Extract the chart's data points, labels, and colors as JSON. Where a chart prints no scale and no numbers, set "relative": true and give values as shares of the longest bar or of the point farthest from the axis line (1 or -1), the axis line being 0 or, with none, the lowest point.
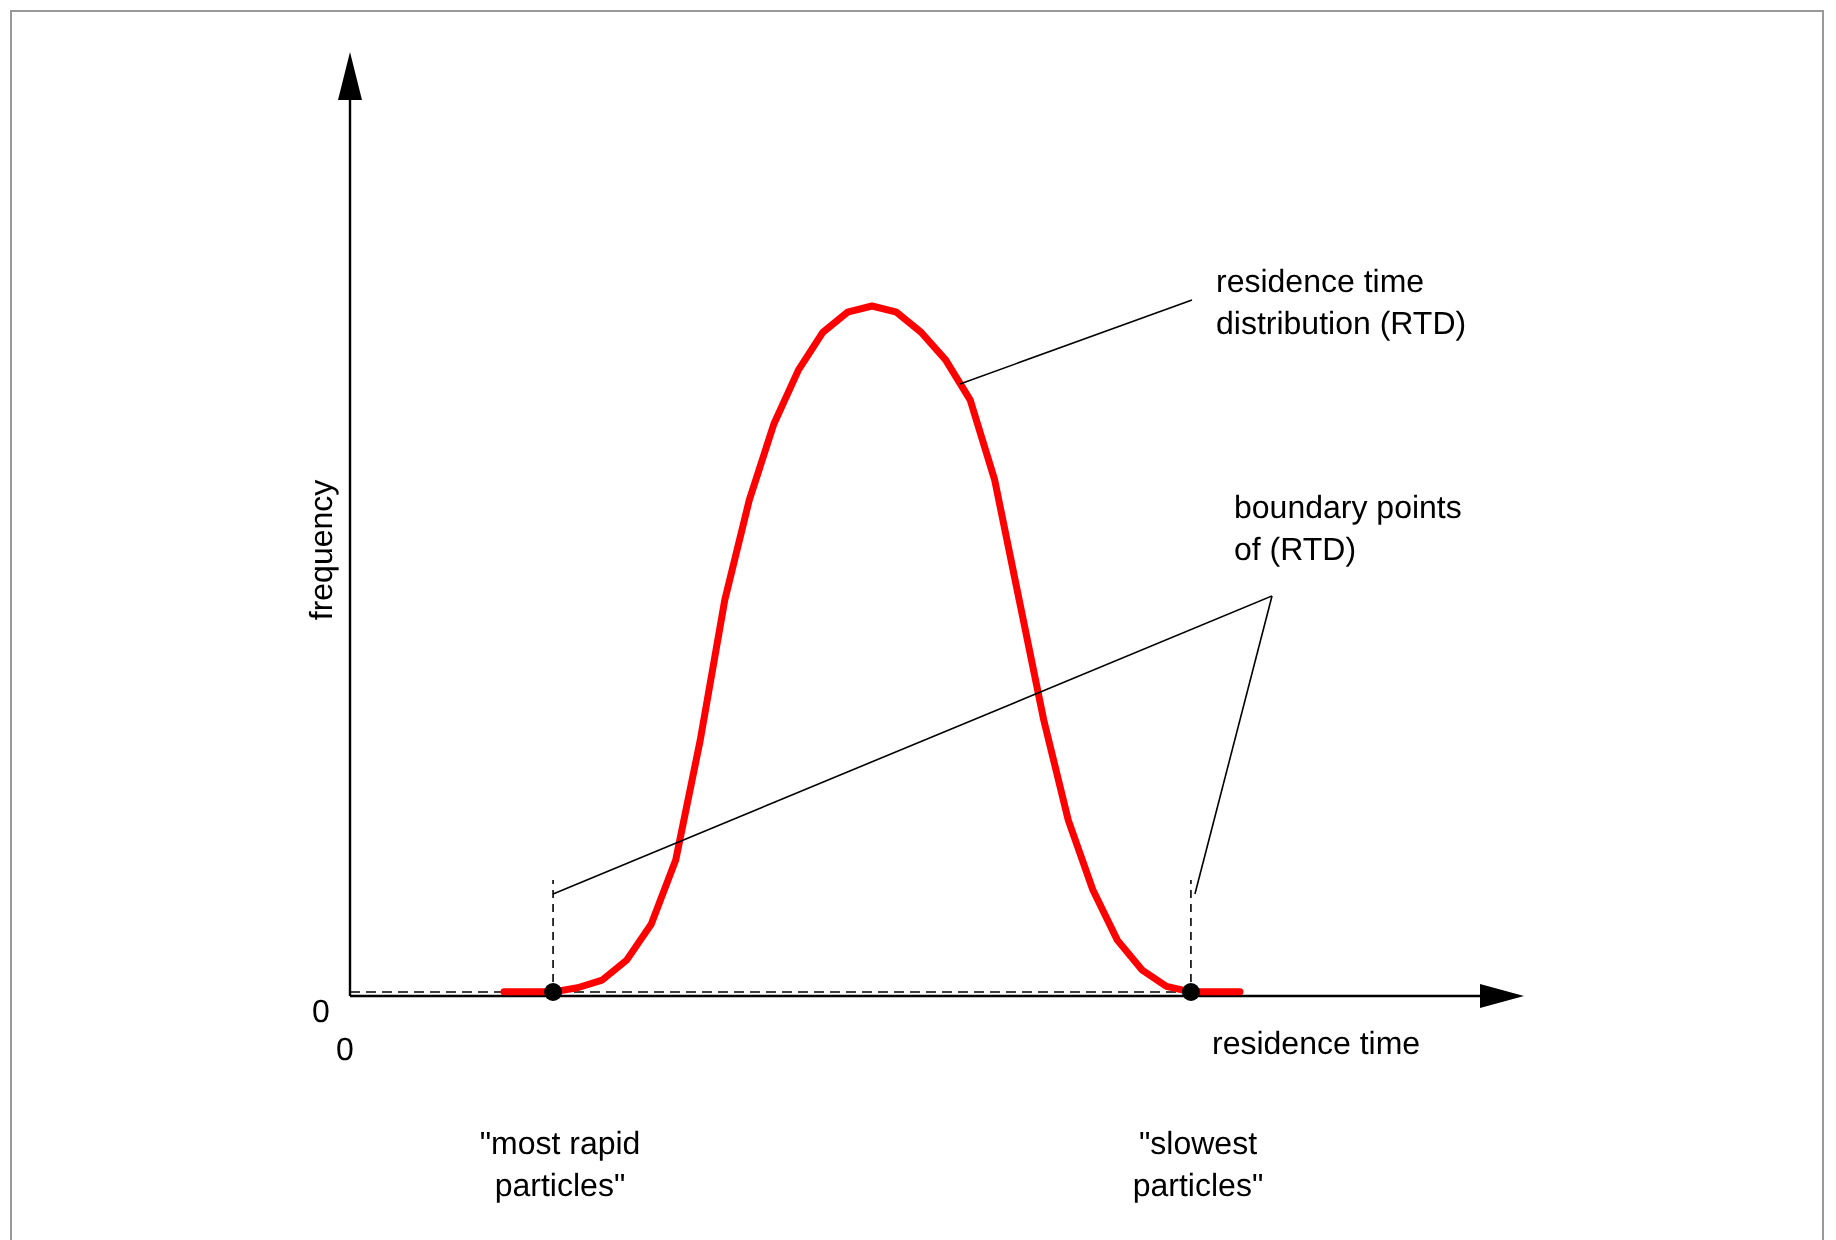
{
  "chart_data": {
    "type": "line",
    "relative": true,
    "xlabel": "residence time",
    "ylabel": "frequency",
    "categories": [
      null,
      null,
      null,
      null,
      null,
      null,
      null,
      null,
      null,
      null,
      null,
      null,
      null,
      null,
      null,
      null,
      null,
      null,
      null,
      null,
      null,
      null,
      null,
      null,
      null,
      null,
      null,
      null,
      null,
      null,
      null
    ],
    "series": [
      {
        "color": "#ff0000",
        "values": [
          0.006,
          0.006,
          0.006,
          0.012,
          0.023,
          0.052,
          0.104,
          0.197,
          0.371,
          0.574,
          0.719,
          0.829,
          0.907,
          0.962,
          0.991,
          1,
          0.991,
          0.962,
          0.922,
          0.864,
          0.748,
          0.574,
          0.4,
          0.255,
          0.154,
          0.081,
          0.038,
          0.014,
          0.006,
          0.006,
          0.006
        ]
      }
    ],
    "annotations": [
      "0",
      "0",
      "residence time\ndistribution (RTD)",
      "boundary points\nof (RTD)",
      "\"most rapid\nparticles\"",
      "\"slowest\nparticles\""
    ]
  }
}
